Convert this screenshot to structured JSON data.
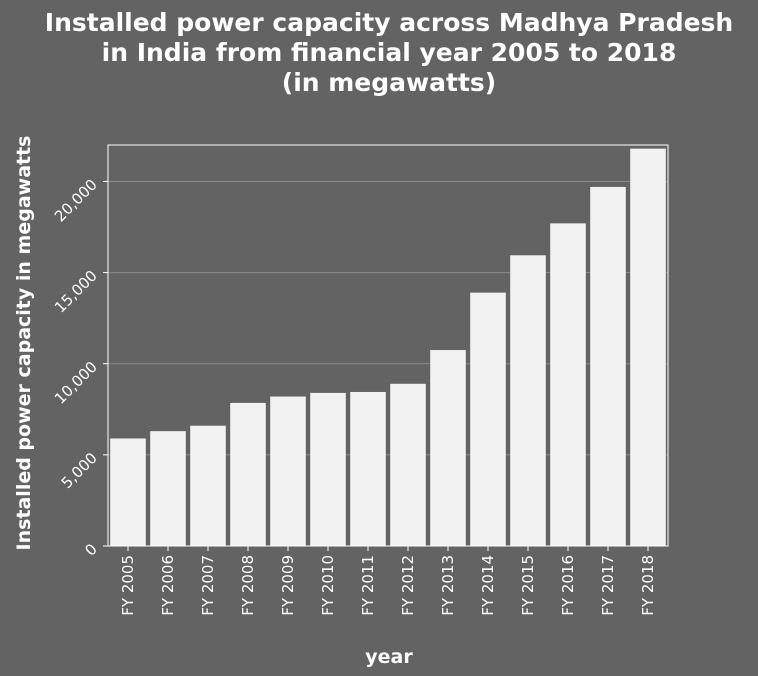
{
  "chart_data": {
    "type": "bar",
    "title_lines": [
      "Installed power capacity across Madhya Pradesh",
      "in India from financial year 2005 to 2018",
      "(in megawatts)"
    ],
    "xlabel": "year",
    "ylabel": "Installed power capacity in megawatts",
    "categories": [
      "FY 2005",
      "FY 2006",
      "FY 2007",
      "FY 2008",
      "FY 2009",
      "FY 2010",
      "FY 2011",
      "FY 2012",
      "FY 2013",
      "FY 2014",
      "FY 2015",
      "FY 2016",
      "FY 2017",
      "FY 2018"
    ],
    "values": [
      5900,
      6300,
      6600,
      7850,
      8200,
      8400,
      8450,
      8900,
      10750,
      13900,
      15950,
      17700,
      19700,
      21800
    ],
    "ylim": [
      0,
      22000
    ],
    "yticks": [
      0,
      5000,
      10000,
      15000,
      20000
    ],
    "ytick_labels": [
      "0",
      "5,000",
      "10,000",
      "15,000",
      "20,000"
    ],
    "grid": "horizontal",
    "legend": "none",
    "colors": {
      "background": "#636363",
      "bar": "#f2f2f2",
      "grid": "#8a8a8a",
      "axis": "#ffffff",
      "text": "#ffffff"
    }
  }
}
